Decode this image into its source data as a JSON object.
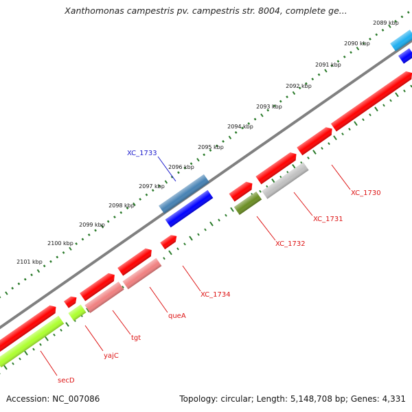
{
  "title": "Xanthomonas campestris pv. campestris str. 8004, complete ge...",
  "accession": "Accession: NC_007086",
  "summary": "Topology: circular; Length: 5,148,708 bp; Genes: 4,331",
  "scale_labels": [
    "2089 kbp",
    "2090 kbp",
    "2091 kbp",
    "2092 kbp",
    "2093 kbp",
    "2094 kbp",
    "2095 kbp",
    "2096 kbp",
    "2097 kbp",
    "2098 kbp",
    "2099 kbp",
    "2100 kbp",
    "2101 kbp"
  ],
  "features": [
    {
      "name": "XC_1733",
      "color": "#1a1acc"
    },
    {
      "name": "XC_1730",
      "color": "#dd1111"
    },
    {
      "name": "XC_1731",
      "color": "#dd1111"
    },
    {
      "name": "XC_1732",
      "color": "#dd1111"
    },
    {
      "name": "XC_1734",
      "color": "#dd1111"
    },
    {
      "name": "queA",
      "color": "#dd1111"
    },
    {
      "name": "tgt",
      "color": "#dd1111"
    },
    {
      "name": "yajC",
      "color": "#dd1111"
    },
    {
      "name": "secD",
      "color": "#dd1111"
    }
  ],
  "colors": {
    "backbone": "#808080",
    "tick_green": "#2a7a2a",
    "cds_red": "#ff0000",
    "cds_pink": "#f08080",
    "cds_grey": "#c0c0c0",
    "cds_olive": "#6b8e23",
    "cds_lime": "#adff2f",
    "cds_blue": "#0000ff",
    "cds_steel": "#4682b4",
    "cds_sky": "#1eaef0"
  }
}
